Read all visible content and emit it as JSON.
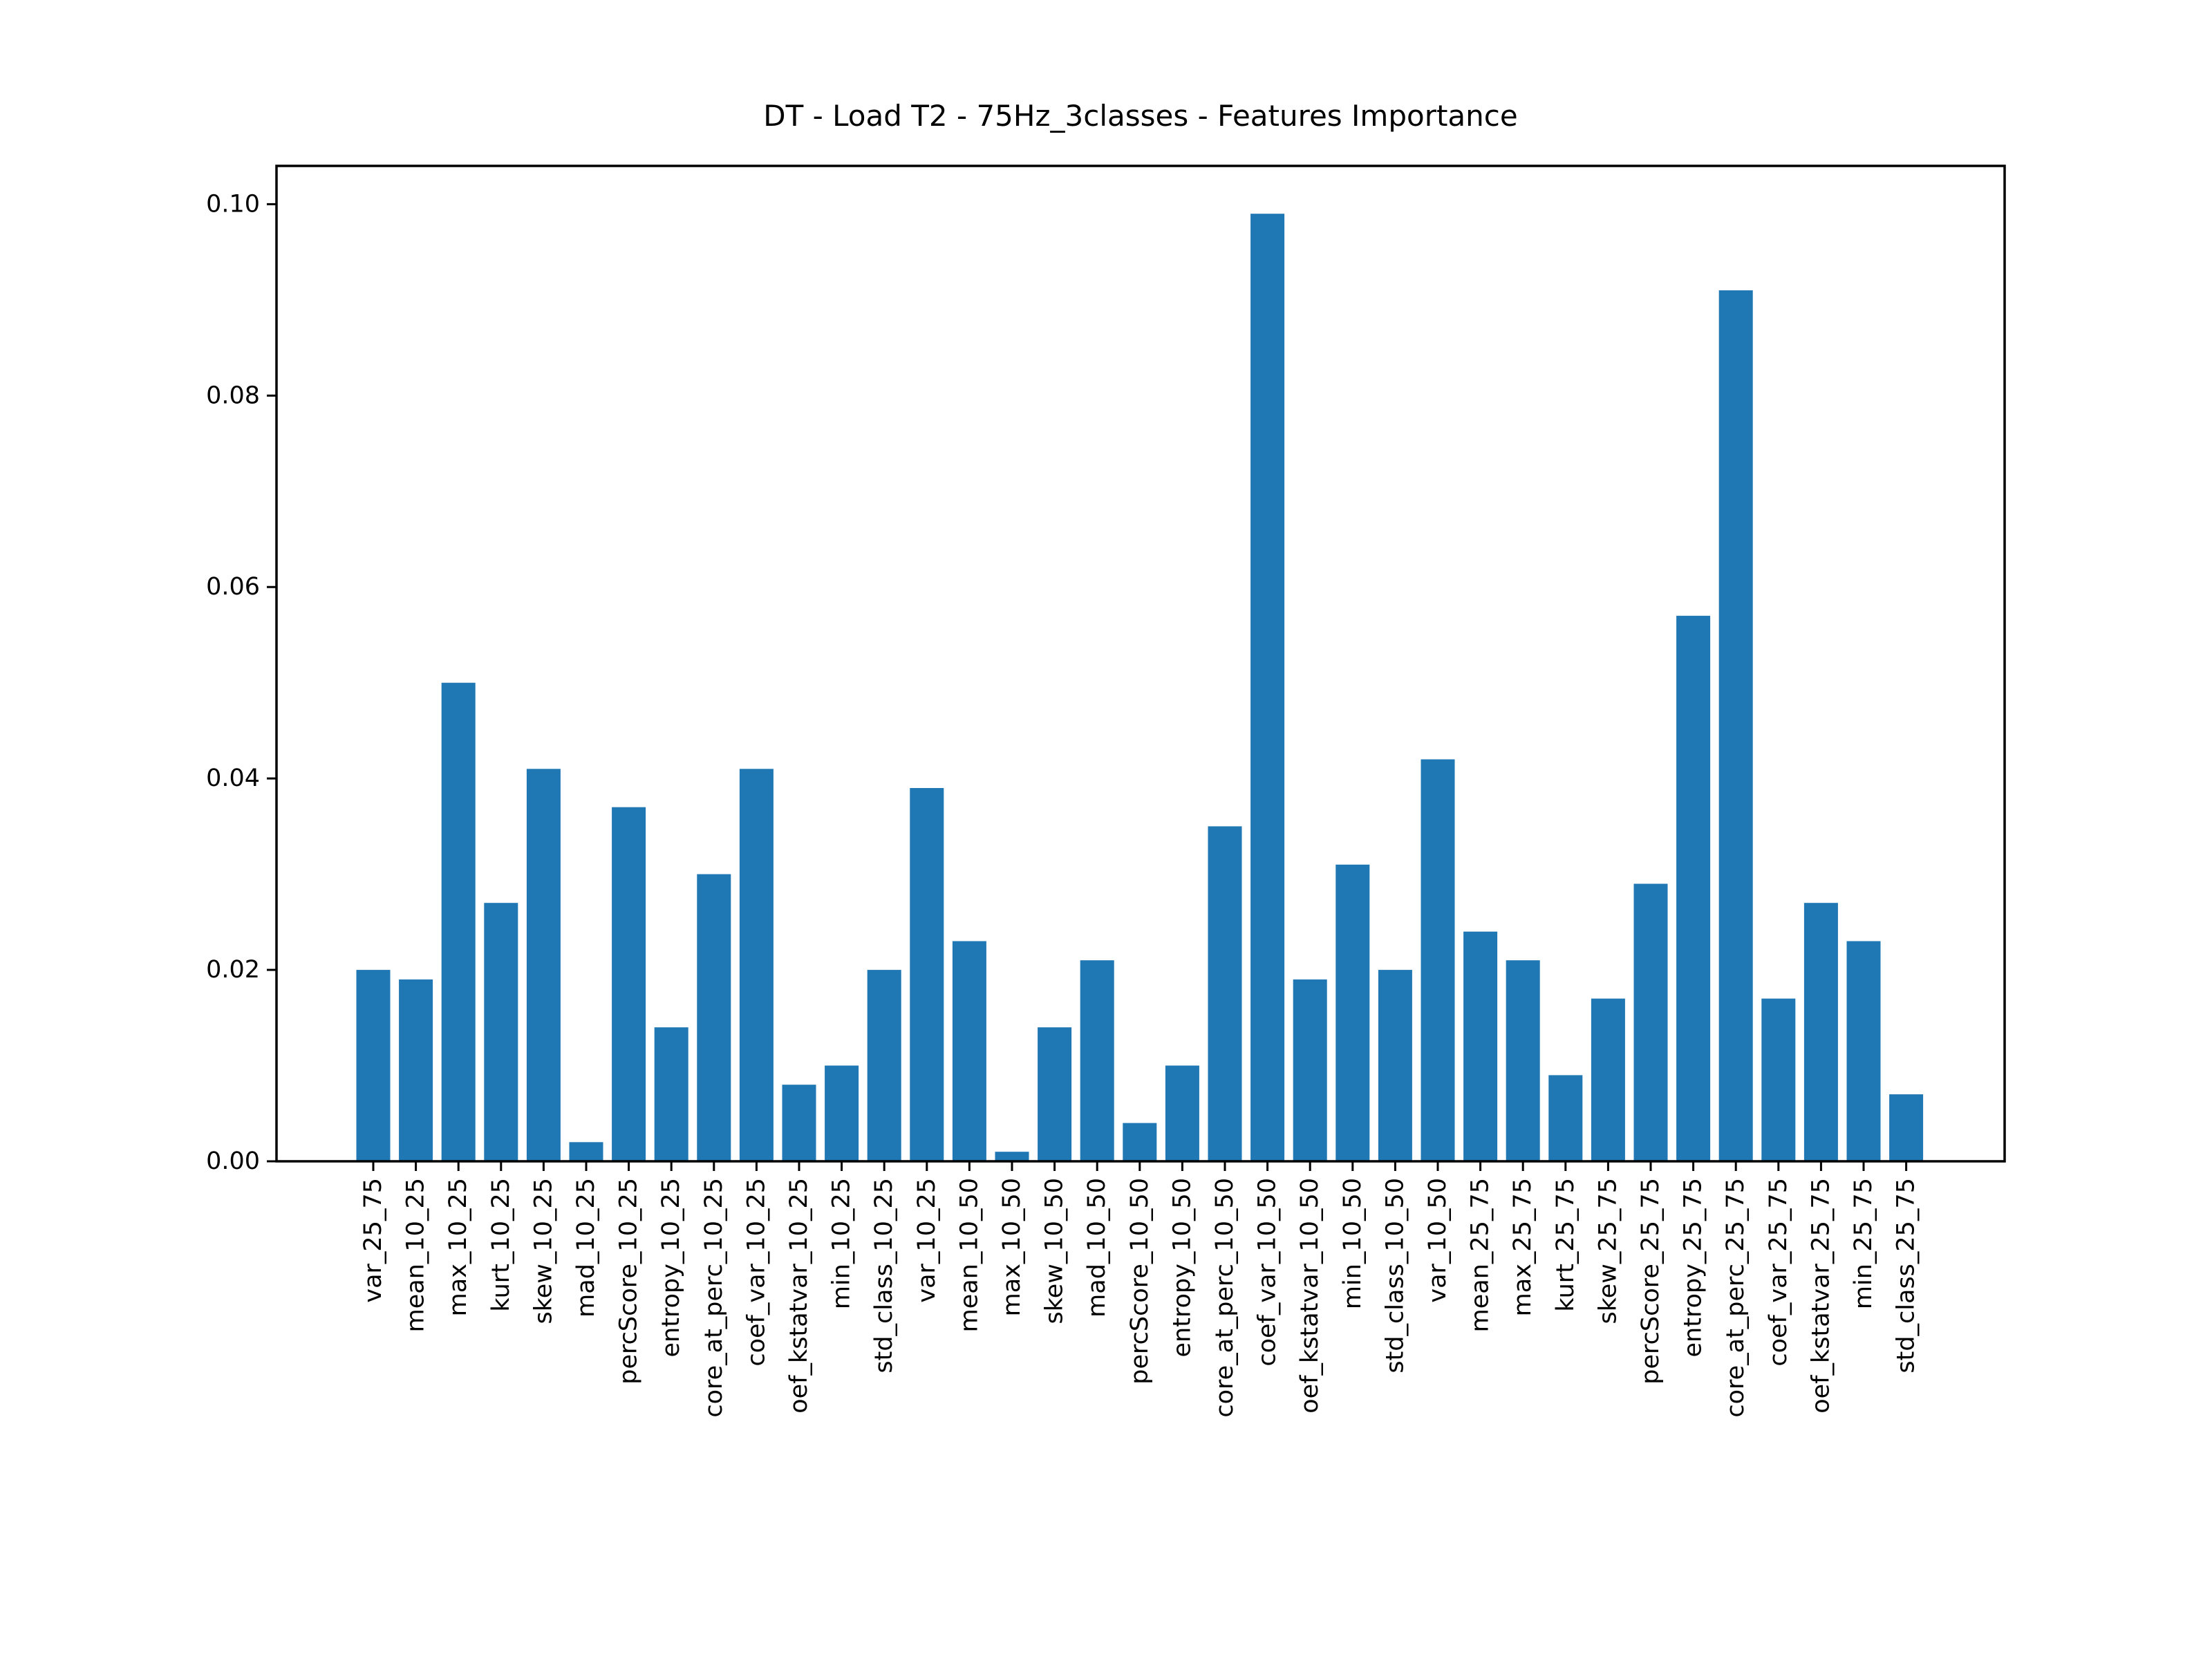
{
  "chart_data": {
    "type": "bar",
    "title": "DT - Load T2 - 75Hz_3classes - Features Importance",
    "xlabel": "",
    "ylabel": "",
    "ylim": [
      0,
      0.104
    ],
    "yticks": [
      "0.00",
      "0.02",
      "0.04",
      "0.06",
      "0.08",
      "0.10"
    ],
    "grid": false,
    "bar_color": "#1f77b4",
    "categories": [
      "var_25_75",
      "mean_10_25",
      "max_10_25",
      "kurt_10_25",
      "skew_10_25",
      "mad_10_25",
      "percScore_10_25",
      "entropy_10_25",
      "core_at_perc_10_25",
      "coef_var_10_25",
      "oef_kstatvar_10_25",
      "min_10_25",
      "std_class_10_25",
      "var_10_25",
      "mean_10_50",
      "max_10_50",
      "skew_10_50",
      "mad_10_50",
      "percScore_10_50",
      "entropy_10_50",
      "core_at_perc_10_50",
      "coef_var_10_50",
      "oef_kstatvar_10_50",
      "min_10_50",
      "std_class_10_50",
      "var_10_50",
      "mean_25_75",
      "max_25_75",
      "kurt_25_75",
      "skew_25_75",
      "percScore_25_75",
      "entropy_25_75",
      "core_at_perc_25_75",
      "coef_var_25_75",
      "oef_kstatvar_25_75",
      "min_25_75",
      "std_class_25_75"
    ],
    "values": [
      0.02,
      0.019,
      0.05,
      0.027,
      0.041,
      0.002,
      0.037,
      0.014,
      0.03,
      0.041,
      0.008,
      0.01,
      0.02,
      0.039,
      0.023,
      0.001,
      0.014,
      0.021,
      0.004,
      0.01,
      0.035,
      0.099,
      0.019,
      0.031,
      0.02,
      0.042,
      0.024,
      0.021,
      0.009,
      0.017,
      0.029,
      0.057,
      0.091,
      0.017,
      0.027,
      0.023,
      0.007
    ]
  }
}
